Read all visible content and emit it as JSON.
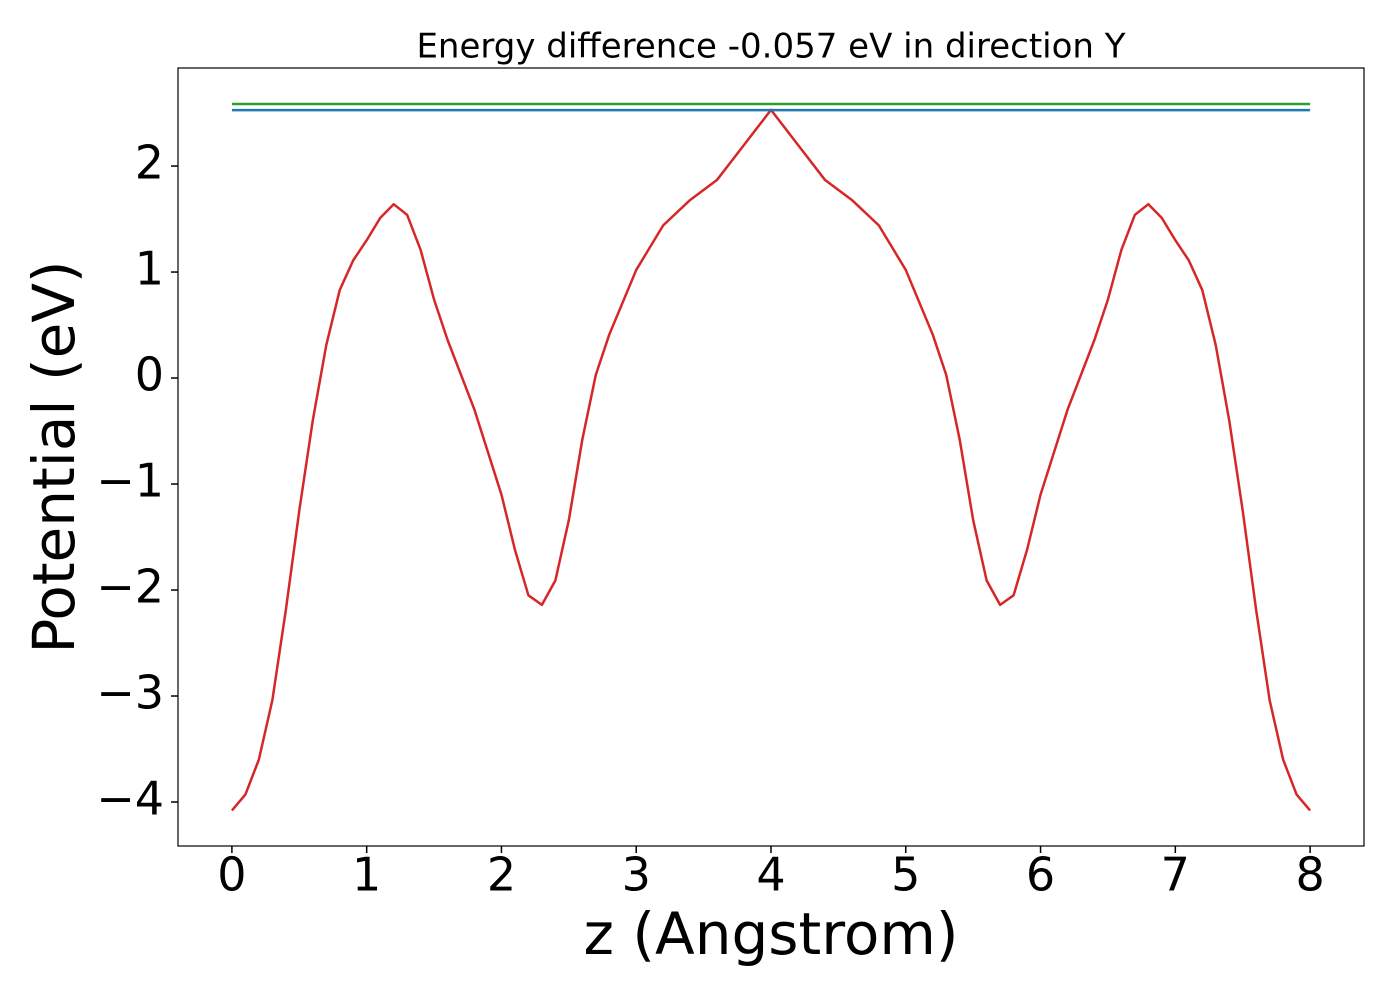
{
  "chart_data": {
    "type": "line",
    "title": "Energy difference -0.057 eV in direction Y",
    "xlabel": "z (Angstrom)",
    "ylabel": "Potential (eV)",
    "xlim": [
      -0.4,
      8.4
    ],
    "ylim": [
      -4.415,
      2.925
    ],
    "xticks": [
      0,
      1,
      2,
      3,
      4,
      5,
      6,
      7,
      8
    ],
    "yticks": [
      {
        "value": -4,
        "label": "−4"
      },
      {
        "value": -3,
        "label": "−3"
      },
      {
        "value": -2,
        "label": "−2"
      },
      {
        "value": -1,
        "label": "−1"
      },
      0,
      1,
      2
    ],
    "grid": false,
    "series": [
      {
        "color": "#d62728",
        "x": [
          0,
          0.1,
          0.2,
          0.3,
          0.4,
          0.5,
          0.6,
          0.7,
          0.8,
          0.9,
          1.0,
          1.1,
          1.2,
          1.3,
          1.4,
          1.5,
          1.6,
          1.8,
          2.0,
          2.1,
          2.2,
          2.3,
          2.4,
          2.5,
          2.6,
          2.7,
          2.8,
          3.0,
          3.2,
          3.4,
          3.6,
          3.8,
          4.0,
          4.2,
          4.4,
          4.6,
          4.8,
          5.0,
          5.2,
          5.3,
          5.4,
          5.5,
          5.6,
          5.7,
          5.8,
          5.9,
          6.0,
          6.2,
          6.4,
          6.5,
          6.6,
          6.7,
          6.8,
          6.9,
          7.0,
          7.1,
          7.2,
          7.3,
          7.4,
          7.5,
          7.6,
          7.7,
          7.8,
          7.9,
          8.0
        ],
        "values": [
          -4.08,
          -3.93,
          -3.6,
          -3.04,
          -2.19,
          -1.25,
          -0.4,
          0.31,
          0.83,
          1.11,
          1.3,
          1.51,
          1.64,
          1.54,
          1.21,
          0.74,
          0.36,
          -0.3,
          -1.1,
          -1.62,
          -2.05,
          -2.14,
          -1.91,
          -1.34,
          -0.58,
          0.03,
          0.41,
          1.02,
          1.44,
          1.68,
          1.87,
          2.2,
          2.53,
          2.2,
          1.87,
          1.68,
          1.44,
          1.02,
          0.41,
          0.03,
          -0.58,
          -1.34,
          -1.91,
          -2.14,
          -2.05,
          -1.62,
          -1.1,
          -0.3,
          0.36,
          0.74,
          1.21,
          1.54,
          1.64,
          1.51,
          1.3,
          1.11,
          0.83,
          0.31,
          -0.4,
          -1.25,
          -2.19,
          -3.04,
          -3.6,
          -3.93,
          -4.08
        ]
      },
      {
        "color": "#2ca02c",
        "x": [
          0,
          8
        ],
        "values": [
          2.585,
          2.585
        ]
      },
      {
        "color": "#1f77b4",
        "x": [
          0,
          8
        ],
        "values": [
          2.528,
          2.528
        ]
      }
    ]
  }
}
